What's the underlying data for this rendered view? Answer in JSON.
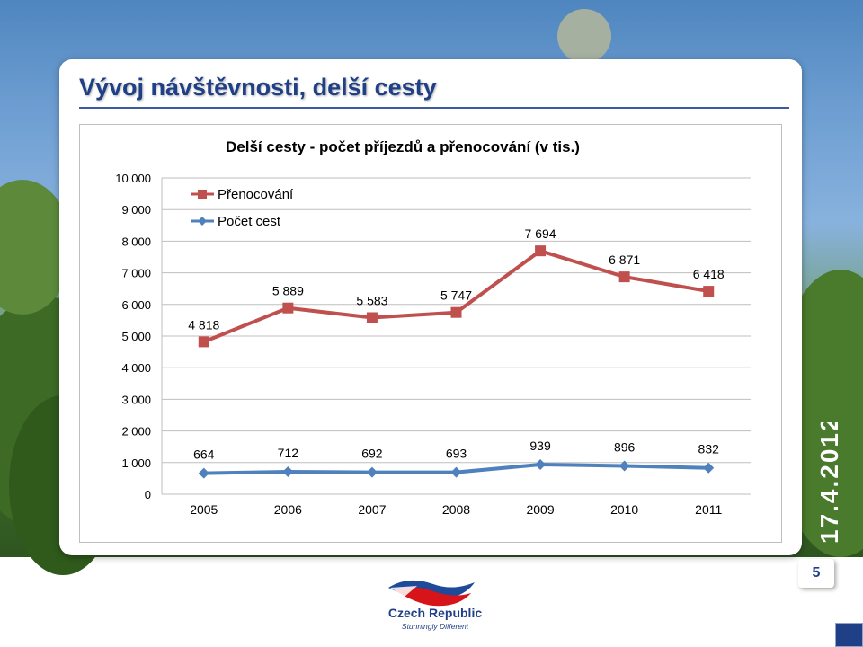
{
  "slide": {
    "title": "Vývoj návštěvnosti, delší cesty",
    "date": "17.4.2012",
    "page_number": "5"
  },
  "logo": {
    "name": "Czech Republic",
    "tagline": "Stunningly Different"
  },
  "colors": {
    "title_blue": "#1f3f87",
    "series_red": "#c0504d",
    "series_blue": "#4f81bd"
  },
  "icons": [
    "czech-republic-logo-icon",
    "navigation-icon"
  ],
  "chart_data": {
    "type": "line",
    "title": "Delší cesty - počet příjezdů a přenocování (v tis.)",
    "categories": [
      "2005",
      "2006",
      "2007",
      "2008",
      "2009",
      "2010",
      "2011"
    ],
    "y_ticks": [
      "10 000",
      "9 000",
      "8 000",
      "7 000",
      "6 000",
      "5 000",
      "4 000",
      "3 000",
      "2 000",
      "1 000",
      "0"
    ],
    "ylim": [
      0,
      10000
    ],
    "grid": true,
    "legend_position": "top-left",
    "series": [
      {
        "name": "Přenocování",
        "color": "#c0504d",
        "marker": "square",
        "values": [
          4818,
          5889,
          5583,
          5747,
          7694,
          6871,
          6418
        ],
        "labels": [
          "4 818",
          "5 889",
          "5 583",
          "5 747",
          "7 694",
          "6 871",
          "6 418"
        ]
      },
      {
        "name": "Počet cest",
        "color": "#4f81bd",
        "marker": "diamond",
        "values": [
          664,
          712,
          692,
          693,
          939,
          896,
          832
        ],
        "labels": [
          "664",
          "712",
          "692",
          "693",
          "939",
          "896",
          "832"
        ]
      }
    ]
  }
}
